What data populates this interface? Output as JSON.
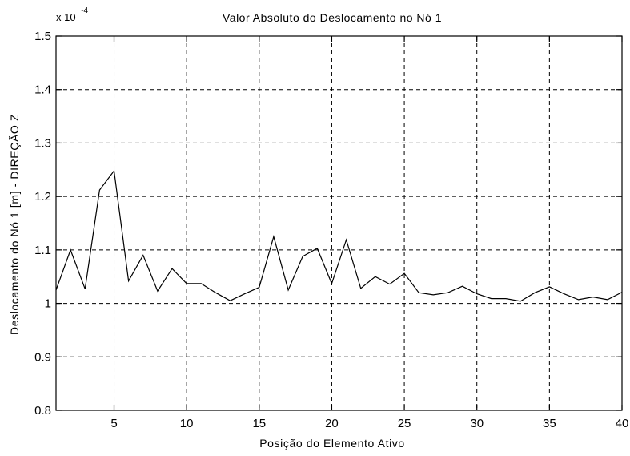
{
  "chart_data": {
    "type": "line",
    "title": "Valor Absoluto do Deslocamento no Nó 1",
    "xlabel": "Posição do Elemento Ativo",
    "ylabel": "Deslocamento do Nó 1 [m] - DIREÇÃO Z",
    "y_multiplier": {
      "base": "x 10",
      "exponent": "-4"
    },
    "xlim": [
      1,
      40
    ],
    "ylim": [
      0.8,
      1.5
    ],
    "grid": true,
    "x_ticks": [
      5,
      10,
      15,
      20,
      25,
      30,
      35,
      40
    ],
    "y_ticks": [
      0.8,
      0.9,
      1.0,
      1.1,
      1.2,
      1.3,
      1.4,
      1.5
    ],
    "x_tick_labels": [
      "5",
      "10",
      "15",
      "20",
      "25",
      "30",
      "35",
      "40"
    ],
    "y_tick_labels": [
      "0.8",
      "0.9",
      "1",
      "1.1",
      "1.2",
      "1.3",
      "1.4",
      "1.5"
    ],
    "series": [
      {
        "color": "#000000",
        "x": [
          1,
          2,
          3,
          4,
          5,
          6,
          7,
          8,
          9,
          10,
          11,
          12,
          13,
          14,
          15,
          16,
          17,
          18,
          19,
          20,
          21,
          22,
          23,
          24,
          25,
          26,
          27,
          28,
          29,
          30,
          31,
          32,
          33,
          34,
          35,
          36,
          37,
          38,
          39,
          40
        ],
        "y": [
          1.025,
          1.1,
          1.027,
          1.212,
          1.248,
          1.042,
          1.09,
          1.023,
          1.065,
          1.037,
          1.037,
          1.02,
          1.005,
          1.018,
          1.03,
          1.125,
          1.025,
          1.088,
          1.103,
          1.037,
          1.119,
          1.028,
          1.05,
          1.036,
          1.056,
          1.02,
          1.016,
          1.02,
          1.032,
          1.018,
          1.009,
          1.009,
          1.004,
          1.02,
          1.031,
          1.018,
          1.007,
          1.012,
          1.007,
          1.021
        ]
      }
    ]
  }
}
